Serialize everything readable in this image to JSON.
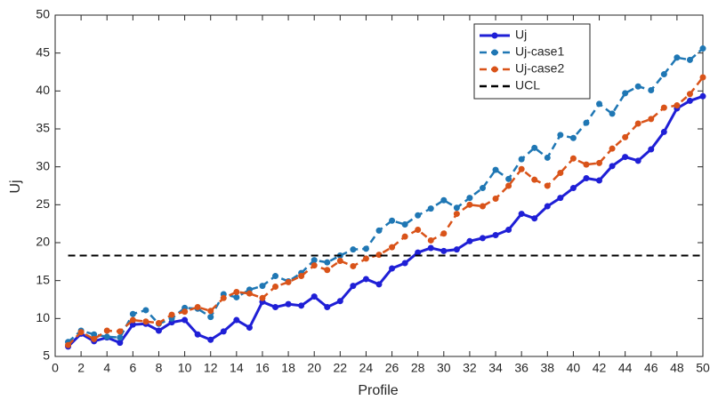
{
  "chart_data": {
    "type": "line",
    "xlabel": "Profile",
    "ylabel": "Uj",
    "xlim": [
      0,
      50
    ],
    "ylim": [
      5,
      50
    ],
    "xticks": [
      0,
      2,
      4,
      6,
      8,
      10,
      12,
      14,
      16,
      18,
      20,
      22,
      24,
      26,
      28,
      30,
      32,
      34,
      36,
      38,
      40,
      42,
      44,
      46,
      48,
      50
    ],
    "yticks": [
      5,
      10,
      15,
      20,
      25,
      30,
      35,
      40,
      45,
      50
    ],
    "grid": false,
    "legend_position": "upper-right",
    "x": [
      1,
      2,
      3,
      4,
      5,
      6,
      7,
      8,
      9,
      10,
      11,
      12,
      13,
      14,
      15,
      16,
      17,
      18,
      19,
      20,
      21,
      22,
      23,
      24,
      25,
      26,
      27,
      28,
      29,
      30,
      31,
      32,
      33,
      34,
      35,
      36,
      37,
      38,
      39,
      40,
      41,
      42,
      43,
      44,
      45,
      46,
      47,
      48,
      49,
      50
    ],
    "series": [
      {
        "name": "Uj",
        "color": "#1f1fd6",
        "linestyle": "solid",
        "marker": true,
        "values": [
          6.3,
          8.0,
          7.0,
          7.5,
          6.8,
          9.2,
          9.3,
          8.4,
          9.5,
          9.8,
          7.9,
          7.2,
          8.3,
          9.8,
          8.8,
          12.2,
          11.5,
          11.9,
          11.7,
          12.9,
          11.5,
          12.3,
          14.3,
          15.2,
          14.5,
          16.6,
          17.3,
          18.7,
          19.3,
          18.9,
          19.1,
          20.2,
          20.6,
          21.0,
          21.7,
          23.8,
          23.2,
          24.8,
          25.9,
          27.2,
          28.5,
          28.2,
          30.1,
          31.3,
          30.8,
          32.3,
          34.6,
          37.7,
          38.7,
          39.3
        ]
      },
      {
        "name": "Uj-case1",
        "color": "#1f77b4",
        "linestyle": "dashed",
        "marker": true,
        "values": [
          6.9,
          8.4,
          7.9,
          7.6,
          7.5,
          10.6,
          11.1,
          9.3,
          10.0,
          11.4,
          11.3,
          10.2,
          13.2,
          12.8,
          13.8,
          14.3,
          15.6,
          14.9,
          16.0,
          17.7,
          17.4,
          18.3,
          19.1,
          19.2,
          21.6,
          22.9,
          22.4,
          23.6,
          24.5,
          25.6,
          24.6,
          25.9,
          27.2,
          29.6,
          28.4,
          31.0,
          32.5,
          31.2,
          34.2,
          33.8,
          35.8,
          38.3,
          37.0,
          39.7,
          40.6,
          40.1,
          42.2,
          44.4,
          44.1,
          45.6
        ]
      },
      {
        "name": "Uj-case2",
        "color": "#d95319",
        "linestyle": "dashed",
        "marker": true,
        "values": [
          6.5,
          8.2,
          7.3,
          8.4,
          8.3,
          9.8,
          9.6,
          9.4,
          10.5,
          10.9,
          11.5,
          11.0,
          12.7,
          13.5,
          13.3,
          12.7,
          14.2,
          14.8,
          15.6,
          17.0,
          16.4,
          17.6,
          16.9,
          17.9,
          18.4,
          19.4,
          20.8,
          21.7,
          20.3,
          21.2,
          23.8,
          25.0,
          24.8,
          25.8,
          27.5,
          29.7,
          28.3,
          27.5,
          29.2,
          31.1,
          30.3,
          30.5,
          32.4,
          33.9,
          35.7,
          36.3,
          37.8,
          38.1,
          39.6,
          41.8
        ]
      },
      {
        "name": "UCL",
        "color": "#000000",
        "linestyle": "dashed",
        "marker": false,
        "y": 18.3
      }
    ]
  }
}
